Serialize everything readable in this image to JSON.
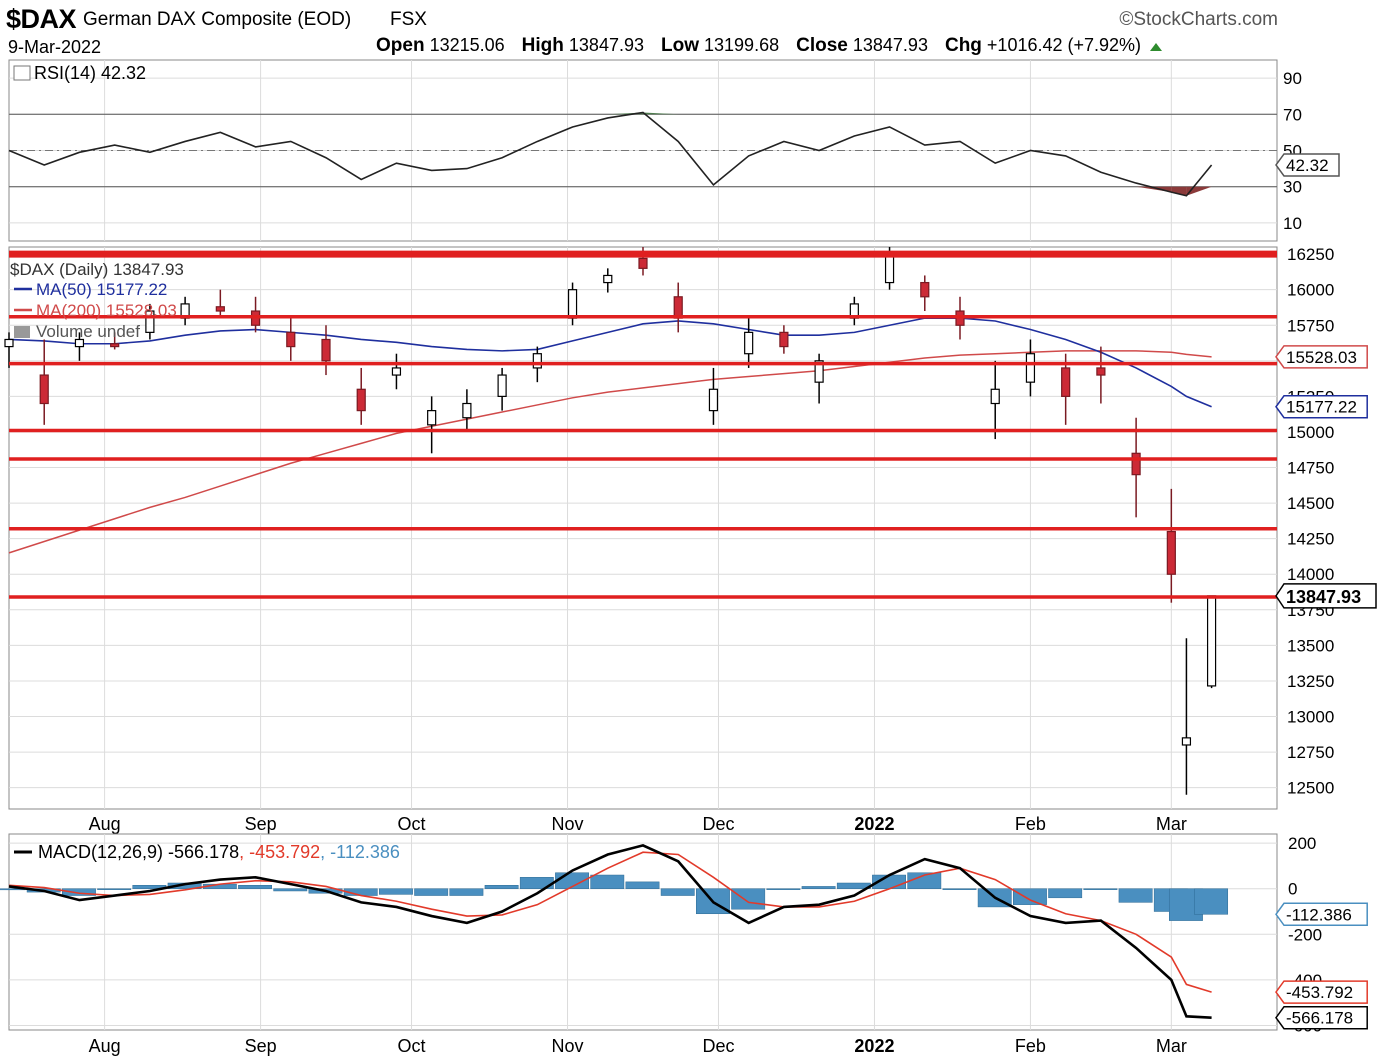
{
  "header": {
    "symbol": "$DAX",
    "name": "German DAX Composite (EOD)",
    "exchange": "FSX",
    "brand": "©StockCharts.com",
    "date": "9-Mar-2022",
    "open_label": "Open",
    "open": "13215.06",
    "high_label": "High",
    "high": "13847.93",
    "low_label": "Low",
    "low": "13199.68",
    "close_label": "Close",
    "close": "13847.93",
    "chg_label": "Chg",
    "chg": "+1016.42 (+7.92%)"
  },
  "colors": {
    "up_candle": "#ffffff",
    "down_candle": "#cc2a36",
    "ma50": "#1f2f9e",
    "ma200": "#d04a4a",
    "resistance": "#e02020",
    "macd": "#000000",
    "signal": "#e23a2a",
    "histogram": "#4a8fc0",
    "rsi_overbought_fill": "#4e7c4e",
    "rsi_oversold_fill": "#8b3a3a"
  },
  "chart_data": [
    {
      "type": "line",
      "panel": "RSI",
      "legend": "RSI(14) 42.32",
      "last_value_label": "42.32",
      "y_ticks": [
        90,
        70,
        50,
        30,
        10
      ],
      "ylim": [
        0,
        100
      ],
      "reference_lines": [
        70,
        50,
        30
      ],
      "x": [
        "2021-07-13",
        "2021-07-20",
        "2021-07-27",
        "2021-08-03",
        "2021-08-10",
        "2021-08-17",
        "2021-08-24",
        "2021-08-31",
        "2021-09-07",
        "2021-09-14",
        "2021-09-21",
        "2021-09-28",
        "2021-10-05",
        "2021-10-12",
        "2021-10-19",
        "2021-10-26",
        "2021-11-02",
        "2021-11-09",
        "2021-11-16",
        "2021-11-23",
        "2021-11-30",
        "2021-12-07",
        "2021-12-14",
        "2021-12-21",
        "2021-12-28",
        "2022-01-04",
        "2022-01-11",
        "2022-01-18",
        "2022-01-25",
        "2022-02-01",
        "2022-02-08",
        "2022-02-15",
        "2022-02-22",
        "2022-03-01",
        "2022-03-04",
        "2022-03-09"
      ],
      "values": [
        50,
        42,
        49,
        53,
        49,
        55,
        60,
        52,
        55,
        46,
        34,
        43,
        39,
        40,
        46,
        55,
        63,
        68,
        71,
        55,
        31,
        47,
        55,
        50,
        58,
        63,
        53,
        55,
        43,
        50,
        47,
        38,
        32,
        27,
        25,
        42
      ]
    },
    {
      "type": "candlestick",
      "panel": "Price",
      "legend": [
        "$DAX (Daily) 13847.93",
        "MA(50) 15177.22",
        "MA(200) 15528.03",
        "Volume undef"
      ],
      "y_ticks": [
        16250,
        16000,
        15750,
        15500,
        15250,
        15000,
        14750,
        14500,
        14250,
        14000,
        13750,
        13500,
        13250,
        13000,
        12750,
        12500
      ],
      "ylim": [
        12350,
        16300
      ],
      "last_value_labels": {
        "close": "13847.93",
        "ma200": "15528.03",
        "ma50": "15177.22"
      },
      "x_ticks": [
        "Aug",
        "Sep",
        "Oct",
        "Nov",
        "Dec",
        "2022",
        "Feb",
        "Mar"
      ],
      "resistance_levels": [
        16250,
        15810,
        15480,
        15010,
        14810,
        14320,
        13840
      ],
      "x": [
        "2021-07-13",
        "2021-07-20",
        "2021-07-27",
        "2021-08-03",
        "2021-08-10",
        "2021-08-17",
        "2021-08-24",
        "2021-08-31",
        "2021-09-07",
        "2021-09-14",
        "2021-09-21",
        "2021-09-28",
        "2021-10-05",
        "2021-10-12",
        "2021-10-19",
        "2021-10-26",
        "2021-11-02",
        "2021-11-09",
        "2021-11-16",
        "2021-11-23",
        "2021-11-30",
        "2021-12-07",
        "2021-12-14",
        "2021-12-21",
        "2021-12-28",
        "2022-01-04",
        "2022-01-11",
        "2022-01-18",
        "2022-01-25",
        "2022-02-01",
        "2022-02-08",
        "2022-02-15",
        "2022-02-22",
        "2022-03-01",
        "2022-03-04",
        "2022-03-09"
      ],
      "ohlc": [
        [
          15600,
          15700,
          15450,
          15650
        ],
        [
          15400,
          15650,
          15050,
          15200
        ],
        [
          15600,
          15700,
          15500,
          15650
        ],
        [
          15620,
          15700,
          15580,
          15600
        ],
        [
          15700,
          15900,
          15650,
          15850
        ],
        [
          15800,
          15950,
          15750,
          15900
        ],
        [
          15880,
          16000,
          15800,
          15850
        ],
        [
          15850,
          15950,
          15700,
          15750
        ],
        [
          15700,
          15800,
          15500,
          15600
        ],
        [
          15650,
          15750,
          15400,
          15500
        ],
        [
          15300,
          15450,
          15050,
          15150
        ],
        [
          15400,
          15550,
          15300,
          15450
        ],
        [
          15050,
          15250,
          14850,
          15150
        ],
        [
          15100,
          15300,
          15000,
          15200
        ],
        [
          15250,
          15450,
          15150,
          15400
        ],
        [
          15450,
          15600,
          15350,
          15550
        ],
        [
          15800,
          16050,
          15750,
          16000
        ],
        [
          16050,
          16150,
          15980,
          16100
        ],
        [
          16220,
          16300,
          16100,
          16150
        ],
        [
          15950,
          16050,
          15700,
          15800
        ],
        [
          15150,
          15450,
          15050,
          15300
        ],
        [
          15550,
          15800,
          15450,
          15700
        ],
        [
          15700,
          15750,
          15550,
          15600
        ],
        [
          15350,
          15550,
          15200,
          15500
        ],
        [
          15800,
          15950,
          15750,
          15900
        ],
        [
          16050,
          16300,
          16000,
          16250
        ],
        [
          16050,
          16100,
          15850,
          15950
        ],
        [
          15850,
          15950,
          15650,
          15750
        ],
        [
          15200,
          15500,
          14950,
          15300
        ],
        [
          15350,
          15650,
          15250,
          15550
        ],
        [
          15450,
          15550,
          15050,
          15250
        ],
        [
          15450,
          15600,
          15200,
          15400
        ],
        [
          14850,
          15100,
          14400,
          14700
        ],
        [
          14300,
          14600,
          13800,
          14000
        ],
        [
          12800,
          13550,
          12450,
          12850
        ],
        [
          13215.06,
          13847.93,
          13199.68,
          13847.93
        ]
      ],
      "ma50": [
        15650,
        15640,
        15620,
        15620,
        15640,
        15680,
        15710,
        15720,
        15700,
        15680,
        15650,
        15630,
        15600,
        15580,
        15570,
        15580,
        15640,
        15700,
        15760,
        15780,
        15760,
        15720,
        15680,
        15680,
        15700,
        15750,
        15800,
        15800,
        15780,
        15720,
        15650,
        15560,
        15450,
        15320,
        15250,
        15177.22
      ],
      "ma200": [
        14150,
        14230,
        14310,
        14390,
        14470,
        14540,
        14620,
        14700,
        14780,
        14850,
        14920,
        14990,
        15040,
        15090,
        15140,
        15190,
        15240,
        15280,
        15310,
        15340,
        15370,
        15390,
        15410,
        15430,
        15460,
        15490,
        15520,
        15540,
        15550,
        15560,
        15570,
        15570,
        15570,
        15560,
        15545,
        15528.03
      ]
    },
    {
      "type": "line",
      "panel": "MACD",
      "legend": "MACD(12,26,9) -566.178, -453.792, -112.386",
      "series_labels": [
        "-566.178",
        "-453.792",
        "-112.386"
      ],
      "y_ticks": [
        200,
        0,
        -200,
        -400,
        -600
      ],
      "ylim": [
        -620,
        240
      ],
      "last_value_labels": {
        "histogram": "-112.386",
        "signal": "-453.792",
        "macd": "-566.178"
      },
      "x_ticks": [
        "Aug",
        "Sep",
        "Oct",
        "Nov",
        "Dec",
        "2022",
        "Feb",
        "Mar"
      ],
      "x": [
        "2021-07-13",
        "2021-07-20",
        "2021-07-27",
        "2021-08-03",
        "2021-08-10",
        "2021-08-17",
        "2021-08-24",
        "2021-08-31",
        "2021-09-07",
        "2021-09-14",
        "2021-09-21",
        "2021-09-28",
        "2021-10-05",
        "2021-10-12",
        "2021-10-19",
        "2021-10-26",
        "2021-11-02",
        "2021-11-09",
        "2021-11-16",
        "2021-11-23",
        "2021-11-30",
        "2021-12-07",
        "2021-12-14",
        "2021-12-21",
        "2021-12-28",
        "2022-01-04",
        "2022-01-11",
        "2022-01-18",
        "2022-01-25",
        "2022-02-01",
        "2022-02-08",
        "2022-02-15",
        "2022-02-22",
        "2022-03-01",
        "2022-03-04",
        "2022-03-09"
      ],
      "macd": [
        10,
        -10,
        -50,
        -30,
        -10,
        20,
        40,
        50,
        20,
        -10,
        -60,
        -80,
        -120,
        -150,
        -100,
        -20,
        80,
        150,
        190,
        120,
        -60,
        -150,
        -80,
        -70,
        -30,
        60,
        130,
        90,
        -40,
        -120,
        -150,
        -140,
        -260,
        -400,
        -560,
        -566.178
      ],
      "signal": [
        15,
        5,
        -20,
        -30,
        -25,
        -5,
        20,
        35,
        30,
        10,
        -30,
        -55,
        -90,
        -120,
        -115,
        -70,
        10,
        90,
        160,
        150,
        50,
        -60,
        -80,
        -80,
        -55,
        0,
        60,
        90,
        40,
        -50,
        -110,
        -140,
        -200,
        -300,
        -420,
        -453.792
      ],
      "histogram": [
        -5,
        -15,
        -30,
        0,
        15,
        25,
        20,
        15,
        -10,
        -20,
        -30,
        -25,
        -30,
        -30,
        15,
        50,
        70,
        60,
        30,
        -30,
        -110,
        -90,
        0,
        10,
        25,
        60,
        70,
        0,
        -80,
        -70,
        -40,
        0,
        -60,
        -100,
        -140,
        -112.386
      ]
    }
  ]
}
